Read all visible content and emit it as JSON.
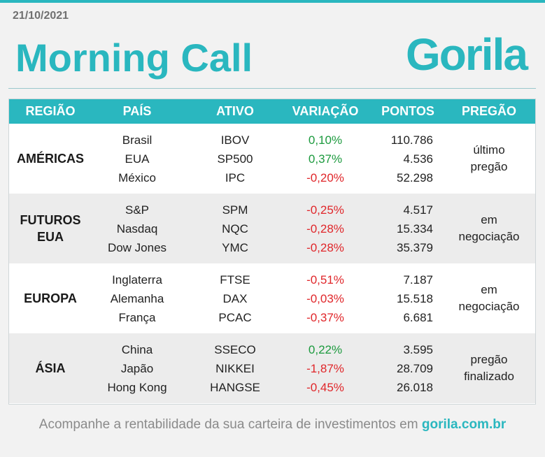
{
  "header": {
    "date": "21/10/2021",
    "title": "Morning Call",
    "logo_text": "Gorila",
    "accent_color": "#2ab7bf"
  },
  "table": {
    "columns": [
      "REGIÃO",
      "PAÍS",
      "ATIVO",
      "VARIAÇÃO",
      "PONTOS",
      "PREGÃO"
    ],
    "groups": [
      {
        "region": "AMÉRICAS",
        "status": "último pregão",
        "rows": [
          {
            "pais": "Brasil",
            "ativo": "IBOV",
            "variacao": "0,10%",
            "dir": "pos",
            "pontos": "110.786"
          },
          {
            "pais": "EUA",
            "ativo": "SP500",
            "variacao": "0,37%",
            "dir": "pos",
            "pontos": "4.536"
          },
          {
            "pais": "México",
            "ativo": "IPC",
            "variacao": "-0,20%",
            "dir": "neg",
            "pontos": "52.298"
          }
        ]
      },
      {
        "region": "FUTUROS EUA",
        "status": "em negociação",
        "rows": [
          {
            "pais": "S&P",
            "ativo": "SPM",
            "variacao": "-0,25%",
            "dir": "neg",
            "pontos": "4.517"
          },
          {
            "pais": "Nasdaq",
            "ativo": "NQC",
            "variacao": "-0,28%",
            "dir": "neg",
            "pontos": "15.334"
          },
          {
            "pais": "Dow Jones",
            "ativo": "YMC",
            "variacao": "-0,28%",
            "dir": "neg",
            "pontos": "35.379"
          }
        ]
      },
      {
        "region": "EUROPA",
        "status": "em negociação",
        "rows": [
          {
            "pais": "Inglaterra",
            "ativo": "FTSE",
            "variacao": "-0,51%",
            "dir": "neg",
            "pontos": "7.187"
          },
          {
            "pais": "Alemanha",
            "ativo": "DAX",
            "variacao": "-0,03%",
            "dir": "neg",
            "pontos": "15.518"
          },
          {
            "pais": "França",
            "ativo": "PCAC",
            "variacao": "-0,37%",
            "dir": "neg",
            "pontos": "6.681"
          }
        ]
      },
      {
        "region": "ÁSIA",
        "status": "pregão finalizado",
        "rows": [
          {
            "pais": "China",
            "ativo": "SSECO",
            "variacao": "0,22%",
            "dir": "pos",
            "pontos": "3.595"
          },
          {
            "pais": "Japão",
            "ativo": "NIKKEI",
            "variacao": "-1,87%",
            "dir": "neg",
            "pontos": "28.709"
          },
          {
            "pais": "Hong Kong",
            "ativo": "HANGSE",
            "variacao": "-0,45%",
            "dir": "neg",
            "pontos": "26.018"
          }
        ]
      }
    ]
  },
  "footer": {
    "text": "Acompanhe a rentabilidade da sua carteira de investimentos em ",
    "link": "gorila.com.br"
  }
}
